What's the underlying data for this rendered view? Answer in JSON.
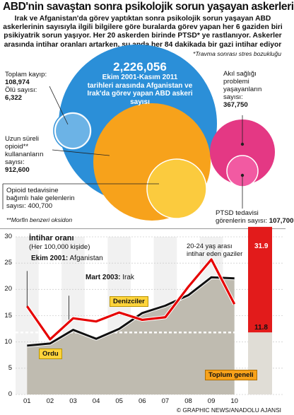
{
  "title": "ABD'nin savaştan sonra psikolojik sorun yaşayan askerleri",
  "intro": [
    "Irak ve Afganistan'da görev yaptıktan sonra psikolojik sorun yaşayan ABD",
    "askerlerinin sayısıyla ilgili bilgilere göre buralarda görev yapan her 6 gaziden biri",
    "psikiyatrik sorun yaşıyor. Her 20 askerden birinde PTSD* ye rastlanıyor. Askerler",
    "arasında intihar oranları artarken, şu anda her 84 dakikada bir gazi intihar ediyor"
  ],
  "footnote_ptsd": "*Travma sonrası stres bozukluğu",
  "center": {
    "value": "2,226,056",
    "desc": [
      "Ekim 2001-Kasım 2011",
      "tarihleri arasında Afganistan ve",
      "Irak'da görev yapan ABD askeri",
      "sayısı"
    ]
  },
  "labels": {
    "loss_lines": [
      "Toplam kayıp:",
      "108,974",
      "Ölü sayısı:",
      "6,322"
    ],
    "opioid_lines": [
      "Uzun süreli",
      "opioid**",
      "kullananların",
      "sayısı:",
      "912,600"
    ],
    "dependent_lines": [
      "Opioid tedavisine",
      "bağımlı hale gelenlerin",
      "sayısı: 400,700"
    ],
    "mental_lines": [
      "Akıl sağlığı",
      "problemi",
      "yaşayanların",
      "sayısı:",
      "367,750"
    ],
    "ptsd_lines": [
      "PTSD tedavisi",
      "görenlerin sayısı:",
      "107,700"
    ]
  },
  "footnote_morphine": "**Morfin benzeri oksidon",
  "chart_title": "İntihar oranı",
  "chart_subtitle": "(Her 100,000 kişide)",
  "events": [
    {
      "bold": "Ekim 2001:",
      "text": " Afganistan"
    },
    {
      "bold": "Mart 2003:",
      "text": " Irak"
    }
  ],
  "chart_data": {
    "type": "line",
    "x": [
      "01",
      "02",
      "03",
      "04",
      "05",
      "06",
      "07",
      "08",
      "09",
      "10"
    ],
    "ylim": [
      0,
      30
    ],
    "yticks": [
      0,
      5,
      10,
      15,
      20,
      25,
      30
    ],
    "series": [
      {
        "name": "Denizciler",
        "color": "#e60000",
        "values": [
          16.8,
          10.5,
          14.5,
          13.9,
          15.6,
          14.2,
          14.7,
          20.5,
          25.7,
          17.2
        ]
      },
      {
        "name": "Ordu",
        "color": "#111111",
        "values": [
          9.3,
          9.7,
          12.3,
          10.6,
          12.5,
          15.5,
          16.9,
          18.9,
          22.3,
          22.1
        ]
      },
      {
        "name": "Toplum geneli",
        "color": "#9a9a9a",
        "values": [
          11.8,
          11.8,
          11.8,
          11.8,
          11.8,
          11.8,
          11.8,
          11.8,
          11.8,
          11.8
        ]
      }
    ],
    "veterans_bar": {
      "label": "20-24 yaş arası intihar eden gaziler",
      "value": 31.9,
      "color": "#e21b1b"
    },
    "general_value": 11.8,
    "value_labels": [
      "31.9",
      "11.8"
    ]
  },
  "credit": "© GRAPHIC NEWS/ANADOLU AJANSI",
  "colors": {
    "blue": "#2b8fd8",
    "orange": "#f7a21b",
    "pink": "#e43884",
    "red": "#e21b1b",
    "shade": "#bfbbb0"
  }
}
